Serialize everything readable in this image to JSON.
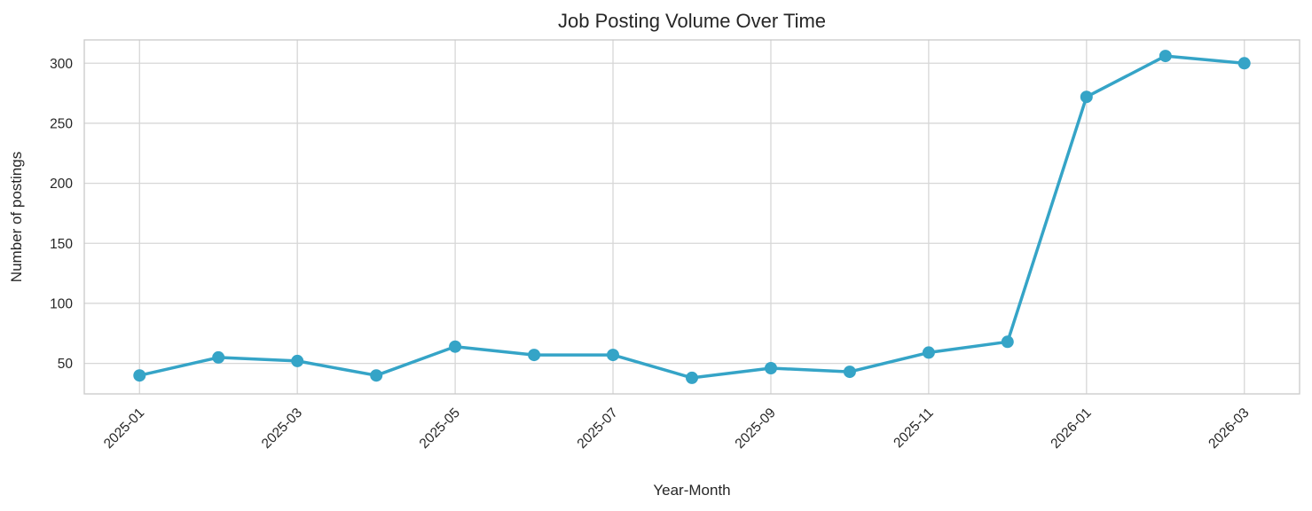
{
  "chart_data": {
    "type": "line",
    "title": "Job Posting Volume Over Time",
    "xlabel": "Year-Month",
    "ylabel": "Number of postings",
    "categories": [
      "2025-01",
      "2025-02",
      "2025-03",
      "2025-04",
      "2025-05",
      "2025-06",
      "2025-07",
      "2025-08",
      "2025-09",
      "2025-10",
      "2025-11",
      "2025-12",
      "2026-01",
      "2026-02",
      "2026-03"
    ],
    "values": [
      40,
      55,
      52,
      40,
      64,
      57,
      57,
      38,
      46,
      43,
      59,
      68,
      272,
      306,
      300
    ],
    "series_name": "postings",
    "ylim": [
      24.6,
      319.4
    ],
    "yticks": [
      50,
      100,
      150,
      200,
      250,
      300
    ],
    "xtick_indices": [
      0,
      2,
      4,
      6,
      8,
      10,
      12,
      14
    ],
    "xtick_labels": [
      "2025-01",
      "2025-03",
      "2025-05",
      "2025-07",
      "2025-09",
      "2025-11",
      "2026-01",
      "2026-03"
    ],
    "grid": true,
    "legend": "none",
    "xtick_rotation_deg": 45,
    "colors": {
      "line": "#35a4c7",
      "marker": "#35a4c7",
      "grid": "#d7d7d7",
      "frame": "#c9c9c9",
      "text": "#262626",
      "background": "#ffffff"
    }
  }
}
